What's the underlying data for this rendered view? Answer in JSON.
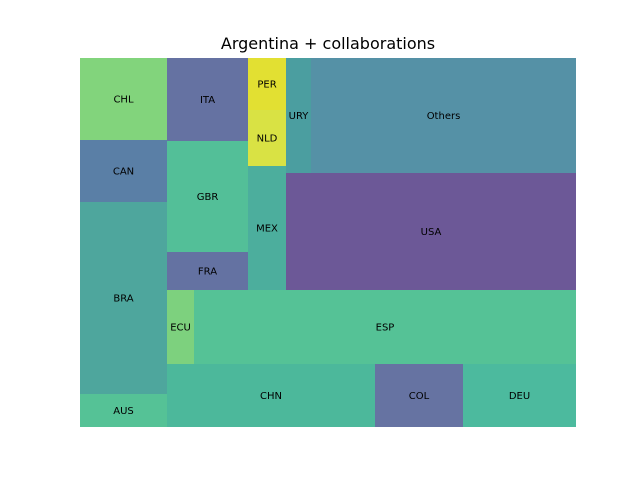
{
  "chart_data": {
    "type": "treemap",
    "title": "Argentina + collaborations",
    "xlabel": "",
    "ylabel": "",
    "grid": false,
    "axes_visible": false,
    "series": [
      {
        "label": "Others",
        "color": "#5591a6"
      },
      {
        "label": "USA",
        "color": "#6c5897"
      },
      {
        "label": "ESP",
        "color": "#55c296"
      },
      {
        "label": "BRA",
        "color": "#4ea69d"
      },
      {
        "label": "CHN",
        "color": "#4cb89b"
      },
      {
        "label": "MEX",
        "color": "#4cae9d"
      },
      {
        "label": "GBR",
        "color": "#53bf98"
      },
      {
        "label": "DEU",
        "color": "#4cba9e"
      },
      {
        "label": "ITA",
        "color": "#6572a2"
      },
      {
        "label": "CHL",
        "color": "#82d47c"
      },
      {
        "label": "COL",
        "color": "#6673a2"
      },
      {
        "label": "CAN",
        "color": "#5a7fa6"
      },
      {
        "label": "URY",
        "color": "#4b9ea0"
      },
      {
        "label": "FRA",
        "color": "#6472a2"
      },
      {
        "label": "ECU",
        "color": "#7dd17e"
      },
      {
        "label": "AUS",
        "color": "#55c296"
      },
      {
        "label": "PER",
        "color": "#e2e032"
      },
      {
        "label": "NLD",
        "color": "#d9e244"
      }
    ]
  }
}
